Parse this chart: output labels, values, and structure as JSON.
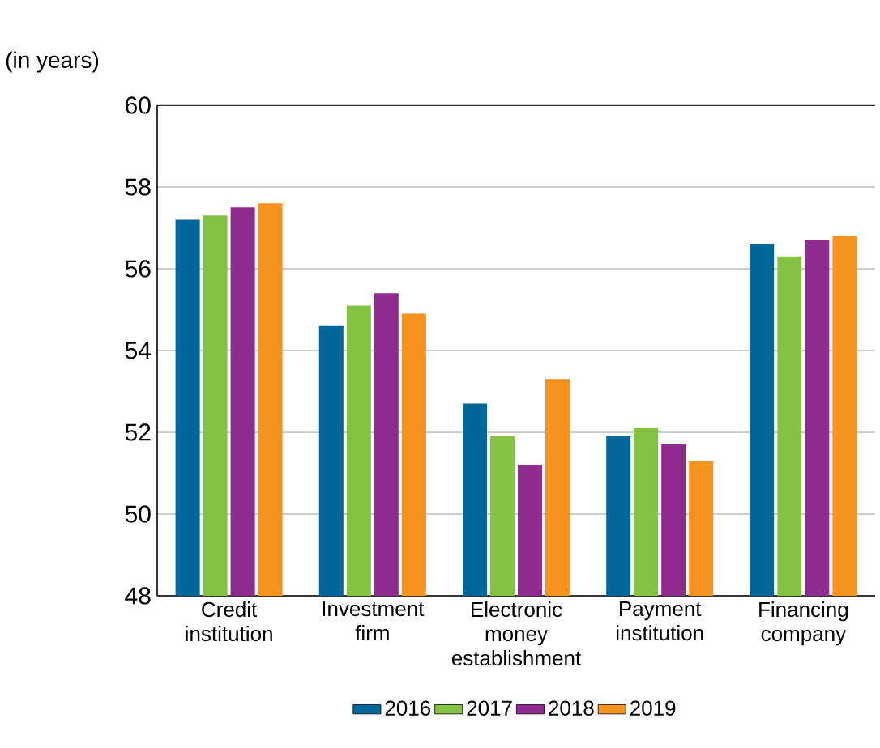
{
  "chart_data": {
    "type": "bar",
    "ylabel": "(in years)",
    "categories": [
      "Credit institution",
      "Investment firm",
      "Electronic money establishment",
      "Payment institution",
      "Financing company"
    ],
    "series": [
      {
        "name": "2016",
        "color": "#00679a",
        "values": [
          57.2,
          54.6,
          52.7,
          51.9,
          56.6
        ]
      },
      {
        "name": "2017",
        "color": "#84c341",
        "values": [
          57.3,
          55.1,
          51.9,
          52.1,
          56.3
        ]
      },
      {
        "name": "2018",
        "color": "#8f2a8f",
        "values": [
          57.5,
          55.4,
          51.2,
          51.7,
          56.7
        ]
      },
      {
        "name": "2019",
        "color": "#f6921e",
        "values": [
          57.6,
          54.9,
          53.3,
          51.3,
          56.8
        ]
      }
    ],
    "ylim": [
      48,
      60
    ],
    "yticks": [
      48,
      50,
      52,
      54,
      56,
      58,
      60
    ],
    "grid": "y",
    "legend": "bottom"
  }
}
